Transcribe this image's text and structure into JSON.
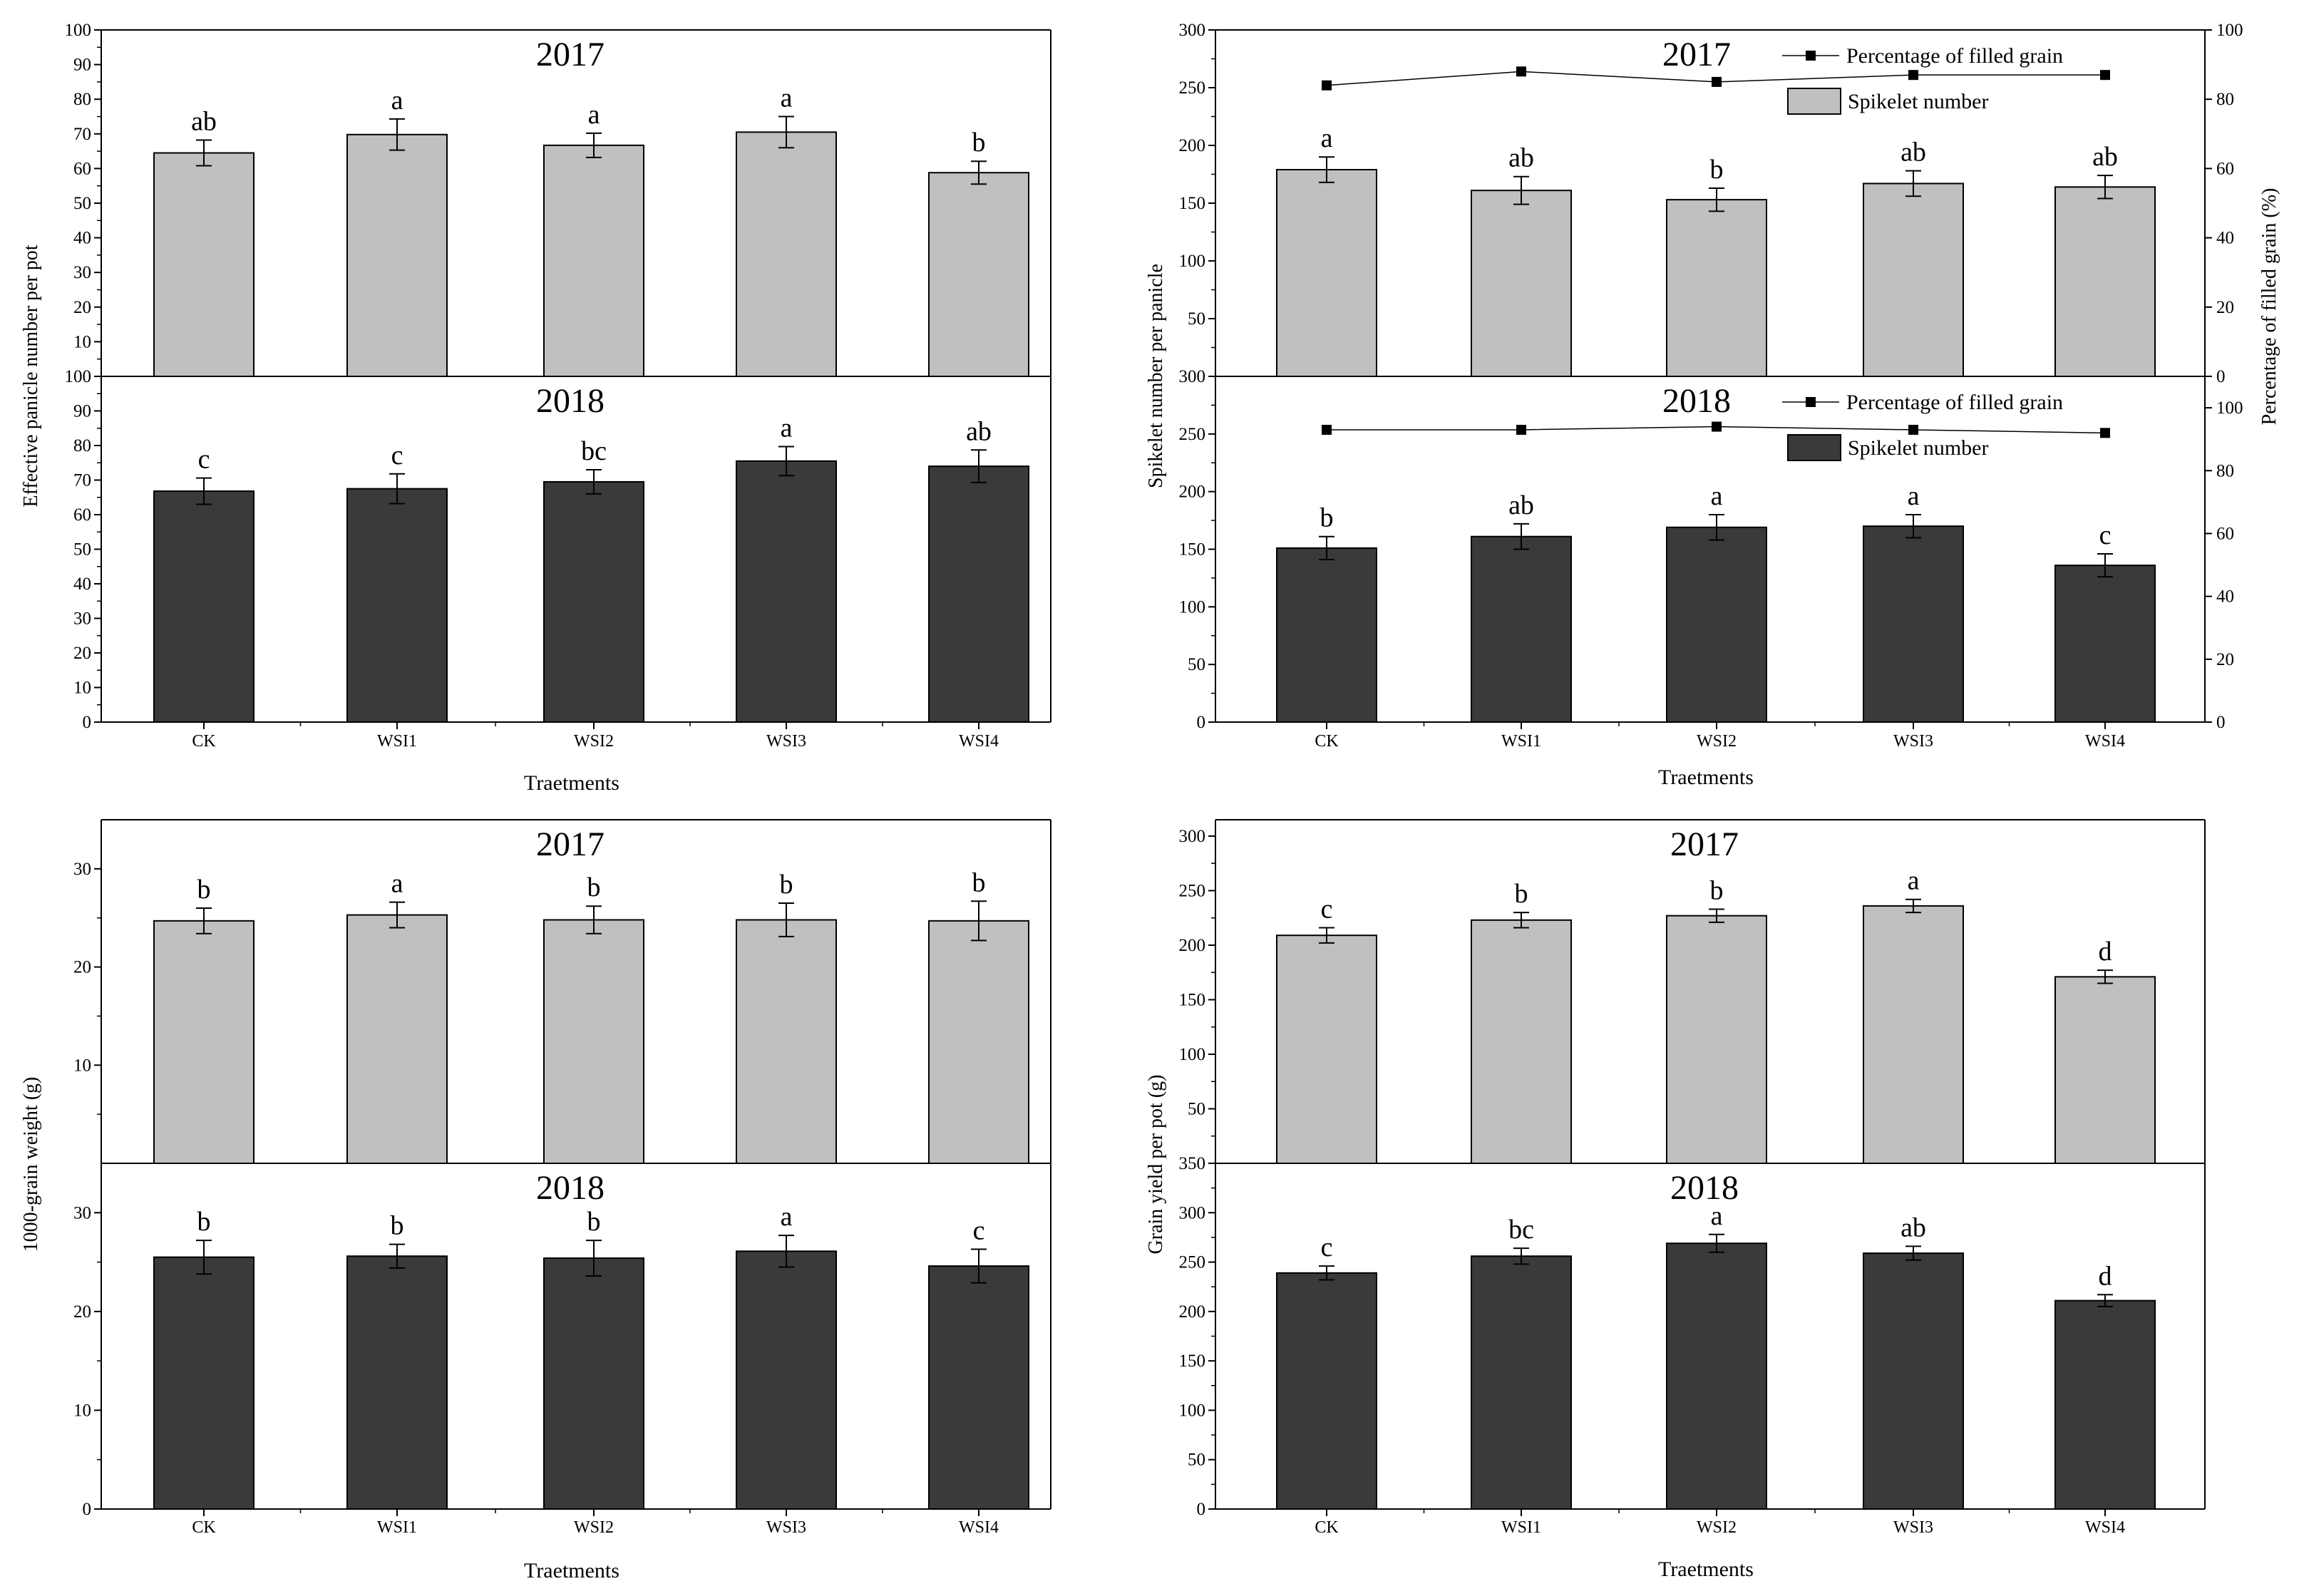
{
  "colors": {
    "bar_2017": "#c0c0c0",
    "bar_2018": "#3a3a3a",
    "axis": "#000000",
    "line": "#000000"
  },
  "chart_data": [
    {
      "id": "panicle",
      "type": "bar",
      "ylabel": "Effective panicle number per pot",
      "xlabel": "Traetments",
      "categories": [
        "CK",
        "WSI1",
        "WSI2",
        "WSI3",
        "WSI4"
      ],
      "panels": [
        {
          "title": "2017",
          "ylim": [
            0,
            100
          ],
          "yticks": [
            "0",
            "10",
            "20",
            "30",
            "40",
            "50",
            "60",
            "70",
            "80",
            "90",
            "100"
          ],
          "values": [
            64.5,
            69.8,
            66.7,
            70.5,
            58.8
          ],
          "errors": [
            3.7,
            4.5,
            3.5,
            4.5,
            3.3
          ],
          "letters": [
            "ab",
            "a",
            "a",
            "a",
            "b"
          ]
        },
        {
          "title": "2018",
          "ylim": [
            0,
            100
          ],
          "yticks": [
            "0",
            "10",
            "20",
            "30",
            "40",
            "50",
            "60",
            "70",
            "80",
            "90",
            "100"
          ],
          "values": [
            66.8,
            67.5,
            69.5,
            75.5,
            74.0
          ],
          "errors": [
            3.8,
            4.3,
            3.5,
            4.2,
            4.7
          ],
          "letters": [
            "c",
            "c",
            "bc",
            "a",
            "ab"
          ]
        }
      ]
    },
    {
      "id": "spikelet",
      "type": "bar+line",
      "ylabel": "Spikelet number per panicle",
      "ylabel_right": "Percentage of filled grain (%)",
      "xlabel": "Traetments",
      "categories": [
        "CK",
        "WSI1",
        "WSI2",
        "WSI3",
        "WSI4"
      ],
      "panels": [
        {
          "title": "2017",
          "ylim": [
            0,
            300
          ],
          "yticks": [
            "0",
            "50",
            "100",
            "150",
            "200",
            "250",
            "300"
          ],
          "y2lim": [
            0,
            100
          ],
          "y2ticks": [
            "0",
            "20",
            "40",
            "60",
            "80",
            "100"
          ],
          "values": [
            179,
            161,
            153,
            167,
            164
          ],
          "errors": [
            11,
            12,
            10,
            11,
            10
          ],
          "letters": [
            "a",
            "ab",
            "b",
            "ab",
            "ab"
          ],
          "line_values": [
            84,
            88,
            85,
            87,
            87
          ],
          "legend_line": "Percentage of filled grain",
          "legend_bar": "Spikelet number"
        },
        {
          "title": "2018",
          "ylim": [
            0,
            300
          ],
          "yticks": [
            "0",
            "50",
            "100",
            "150",
            "200",
            "250",
            "300"
          ],
          "y2lim": [
            0,
            110
          ],
          "y2ticks": [
            "0",
            "20",
            "40",
            "60",
            "80",
            "100"
          ],
          "values": [
            151,
            161,
            169,
            170,
            136
          ],
          "errors": [
            10,
            11,
            11,
            10,
            10
          ],
          "letters": [
            "b",
            "ab",
            "a",
            "a",
            "c"
          ],
          "line_values": [
            93,
            93,
            94,
            93,
            92
          ],
          "legend_line": "Percentage of filled grain",
          "legend_bar": "Spikelet number"
        }
      ]
    },
    {
      "id": "grainweight",
      "type": "bar",
      "ylabel": "1000-grain weight (g)",
      "xlabel": "Traetments",
      "categories": [
        "CK",
        "WSI1",
        "WSI2",
        "WSI3",
        "WSI4"
      ],
      "panels": [
        {
          "title": "2017",
          "ylim": [
            0,
            35
          ],
          "yticks": [
            "0",
            "10",
            "20",
            "30"
          ],
          "values": [
            24.7,
            25.3,
            24.8,
            24.8,
            24.7
          ],
          "errors": [
            1.3,
            1.3,
            1.4,
            1.7,
            2.0
          ],
          "letters": [
            "b",
            "a",
            "b",
            "b",
            "b"
          ]
        },
        {
          "title": "2018",
          "ylim": [
            0,
            35
          ],
          "yticks": [
            "0",
            "10",
            "20",
            "30"
          ],
          "values": [
            25.5,
            25.6,
            25.4,
            26.1,
            24.6
          ],
          "errors": [
            1.7,
            1.2,
            1.8,
            1.6,
            1.7
          ],
          "letters": [
            "b",
            "b",
            "b",
            "a",
            "c"
          ]
        }
      ]
    },
    {
      "id": "yield",
      "type": "bar",
      "ylabel": "Grain yield  per pot (g)",
      "xlabel": "Traetments",
      "categories": [
        "CK",
        "WSI1",
        "WSI2",
        "WSI3",
        "WSI4"
      ],
      "panels": [
        {
          "title": "2017",
          "ylim": [
            0,
            315
          ],
          "yticks": [
            "0",
            "50",
            "100",
            "150",
            "200",
            "250",
            "300"
          ],
          "values": [
            209,
            223,
            227,
            236,
            171
          ],
          "errors": [
            7,
            7,
            6,
            6,
            6
          ],
          "letters": [
            "c",
            "b",
            "b",
            "a",
            "d"
          ]
        },
        {
          "title": "2018",
          "ylim": [
            0,
            350
          ],
          "yticks": [
            "0",
            "50",
            "100",
            "150",
            "200",
            "250",
            "300",
            "350"
          ],
          "values": [
            239,
            256,
            269,
            259,
            211
          ],
          "errors": [
            7,
            8,
            9,
            7,
            6
          ],
          "letters": [
            "c",
            "bc",
            "a",
            "ab",
            "d"
          ]
        }
      ]
    }
  ]
}
